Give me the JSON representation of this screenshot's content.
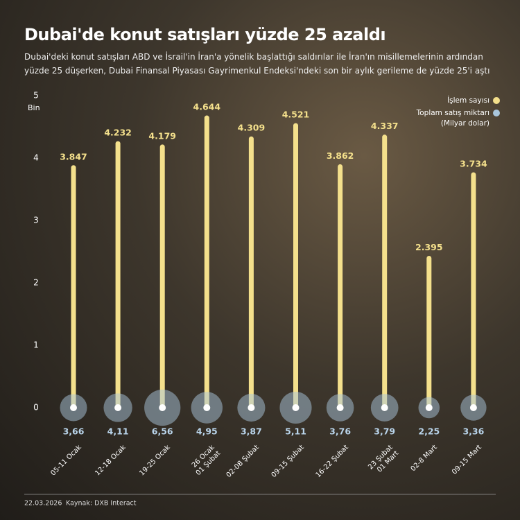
{
  "chart_data": {
    "type": "lollipop-bubble",
    "title": "Dubai'de konut satışları yüzde 25 azaldı",
    "subtitle": "Dubai'deki konut satışları ABD ve İsrail'in İran'a yönelik başlattığı saldırılar ile İran'ın misillemelerinin ardından yüzde 25 düşerken, Dubai Finansal Piyasası Gayrimenkul Endeksi'ndeki son bir aylık gerileme de yüzde 25'i aştı",
    "y_label": "Bin",
    "categories": [
      "05-11 Ocak",
      "12-18 Ocak",
      "19-25 Ocak",
      "26 Ocak\n01 Şubat",
      "02-08 Şubat",
      "09-15 Şubat",
      "16-22 Şubat",
      "23 Şubat\n01 Mart",
      "02-8 Mart",
      "09-15 Mart"
    ],
    "series": [
      {
        "name": "İşlem sayısı",
        "color": "#f4e08c",
        "values": [
          3.847,
          4.232,
          4.179,
          4.644,
          4.309,
          4.521,
          3.862,
          4.337,
          2.395,
          3.734
        ]
      },
      {
        "name": "Toplam satış miktarı",
        "color": "#a9c6dc",
        "values": [
          3.66,
          4.11,
          6.56,
          4.95,
          3.87,
          5.11,
          3.76,
          3.79,
          2.25,
          3.36
        ],
        "value_labels": [
          "3,66",
          "4,11",
          "6,56",
          "4,95",
          "3,87",
          "5,11",
          "3,76",
          "3,79",
          "2,25",
          "3,36"
        ]
      }
    ],
    "legend_note": "(Milyar dolar)",
    "ylim": [
      0,
      5
    ],
    "yticks": [
      0,
      1,
      2,
      3,
      4,
      5
    ],
    "date": "22.03.2026",
    "source": "Kaynak: DXB Interact"
  }
}
